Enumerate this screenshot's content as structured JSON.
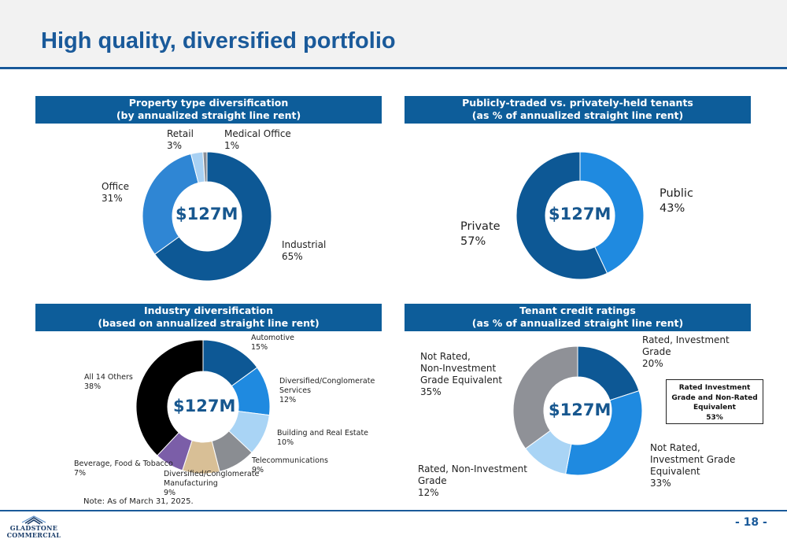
{
  "title": "High quality, diversified portfolio",
  "colors": {
    "brand_blue": "#0d5d9a",
    "title_blue": "#1a5a9a"
  },
  "chart_data": [
    {
      "type": "pie",
      "title_lines": [
        "Property type diversification",
        "(by annualized straight line rent)"
      ],
      "center_label": "$127M",
      "slices": [
        {
          "name": "Industrial",
          "value": 65,
          "value_label": "65%",
          "color": "#0d5895"
        },
        {
          "name": "Office",
          "value": 31,
          "value_label": "31%",
          "color": "#2f86d4"
        },
        {
          "name": "Retail",
          "value": 3,
          "value_label": "3%",
          "color": "#a9d1f3"
        },
        {
          "name": "Medical Office",
          "value": 1,
          "value_label": "1%",
          "color": "#8a8f98"
        }
      ]
    },
    {
      "type": "pie",
      "title_lines": [
        "Publicly-traded vs. privately-held tenants",
        "(as % of annualized straight line rent)"
      ],
      "center_label": "$127M",
      "slices": [
        {
          "name": "Public",
          "value": 43,
          "value_label": "43%",
          "color": "#1f8ae0"
        },
        {
          "name": "Private",
          "value": 57,
          "value_label": "57%",
          "color": "#0d5895"
        }
      ]
    },
    {
      "type": "pie",
      "title_lines": [
        "Industry diversification",
        "(based on annualized straight line rent)"
      ],
      "center_label": "$127M",
      "slices": [
        {
          "name": "Automotive",
          "value": 15,
          "value_label": "15%",
          "color": "#0d5895"
        },
        {
          "name": "Diversified/Conglomerate Services",
          "value": 12,
          "value_label": "12%",
          "color": "#1f8ae0"
        },
        {
          "name": "Building and Real Estate",
          "value": 10,
          "value_label": "10%",
          "color": "#a9d4f5"
        },
        {
          "name": "Telecommunications",
          "value": 9,
          "value_label": "9%",
          "color": "#8a8d92"
        },
        {
          "name": "Diversified/Conglomerate Manufacturing",
          "value": 9,
          "value_label": "9%",
          "color": "#d8bf96"
        },
        {
          "name": "Beverage, Food & Tobacco",
          "value": 7,
          "value_label": "7%",
          "color": "#7b5ea8"
        },
        {
          "name": "All 14 Others",
          "value": 38,
          "value_label": "38%",
          "color": "#000000"
        }
      ]
    },
    {
      "type": "pie",
      "title_lines": [
        "Tenant credit ratings",
        "(as % of annualized straight line rent)"
      ],
      "center_label": "$127M",
      "slices": [
        {
          "name": "Rated, Investment Grade",
          "value": 20,
          "value_label": "20%",
          "color": "#0d5895"
        },
        {
          "name": "Not Rated, Investment Grade Equivalent",
          "value": 33,
          "value_label": "33%",
          "color": "#1f8ae0"
        },
        {
          "name": "Rated, Non-Investment Grade",
          "value": 12,
          "value_label": "12%",
          "color": "#a9d4f5"
        },
        {
          "name": "Not Rated, Non-Investment Grade Equivalent",
          "value": 35,
          "value_label": "35%",
          "color": "#8f9197"
        }
      ],
      "callout_lines": [
        "Rated Investment",
        "Grade and Non-Rated",
        "Equivalent",
        "53%"
      ]
    }
  ],
  "labels": {
    "c1": {
      "retail": [
        "Retail",
        "3%"
      ],
      "medical": [
        "Medical Office",
        "1%"
      ],
      "office": [
        "Office",
        "31%"
      ],
      "industrial": [
        "Industrial",
        "65%"
      ]
    },
    "c2": {
      "public": [
        "Public",
        "43%"
      ],
      "private": [
        "Private",
        "57%"
      ]
    },
    "c3": {
      "automotive": [
        "Automotive",
        "15%"
      ],
      "services": [
        "Diversified/Conglomerate",
        "Services",
        "12%"
      ],
      "building": [
        "Building and Real Estate",
        "10%"
      ],
      "telecom": [
        "Telecommunications",
        "9%"
      ],
      "manufacturing": [
        "Diversified/Conglomerate",
        "Manufacturing",
        "9%"
      ],
      "beverage": [
        "Beverage, Food & Tobacco",
        "7%"
      ],
      "others": [
        "All 14 Others",
        "38%"
      ]
    },
    "c4": {
      "rated_ig": [
        "Rated, Investment",
        "Grade",
        "20%"
      ],
      "notrated_ig": [
        "Not Rated,",
        "Investment Grade",
        "Equivalent",
        "33%"
      ],
      "rated_nig": [
        "Rated, Non-Investment",
        "Grade",
        "12%"
      ],
      "notrated_nig": [
        "Not Rated,",
        "Non-Investment",
        "Grade Equivalent",
        "35%"
      ]
    }
  },
  "note": "Note: As of March 31, 2025.",
  "logo": {
    "line1": "GLADSTONE",
    "line2": "COMMERCIAL"
  },
  "page_number": "- 18 -"
}
